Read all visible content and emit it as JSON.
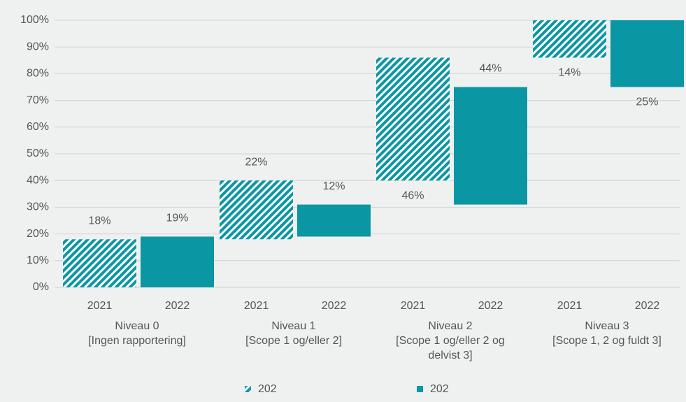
{
  "chart_data": {
    "type": "floating_bar",
    "categories": [
      [
        "Niveau 0",
        "[Ingen rapportering]"
      ],
      [
        "Niveau 1",
        "[Scope 1 og/eller 2]"
      ],
      [
        "Niveau 2",
        "[Scope 1 og/eller 2 og",
        "delvist 3]"
      ],
      [
        "Niveau 3",
        "[Scope 1, 2 og fuldt 3]"
      ]
    ],
    "series": [
      {
        "name": "202",
        "sublabel": "2021",
        "color": "#0a97a3",
        "hatched": true,
        "values": [
          18,
          22,
          46,
          14
        ],
        "value_labels": [
          "18%",
          "22%",
          "46%",
          "14%"
        ]
      },
      {
        "name": "202",
        "sublabel": "2022",
        "color": "#0a97a3",
        "hatched": false,
        "values": [
          19,
          12,
          44,
          25
        ],
        "value_labels": [
          "19%",
          "12%",
          "44%",
          "25%"
        ]
      }
    ],
    "ylim": [
      0,
      100
    ],
    "yticks": [
      {
        "value": 0,
        "label": "0%"
      },
      {
        "value": 10,
        "label": "10%"
      },
      {
        "value": 20,
        "label": "20%"
      },
      {
        "value": 30,
        "label": "30%"
      },
      {
        "value": 40,
        "label": "40%"
      },
      {
        "value": 50,
        "label": "50%"
      },
      {
        "value": 60,
        "label": "60%"
      },
      {
        "value": 70,
        "label": "70%"
      },
      {
        "value": 80,
        "label": "80%"
      },
      {
        "value": 90,
        "label": "90%"
      },
      {
        "value": 100,
        "label": "100%"
      }
    ],
    "grid": true,
    "legend": "bottom"
  }
}
